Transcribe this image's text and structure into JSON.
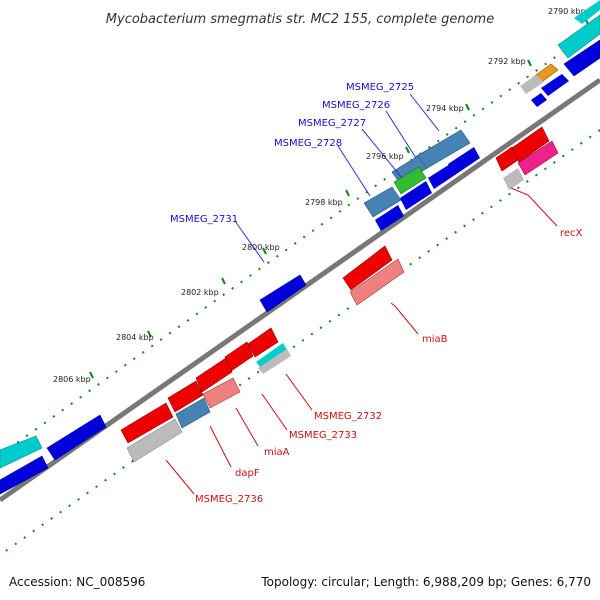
{
  "title": "Mycobacterium smegmatis str. MC2 155, complete genome",
  "footer": {
    "accession": "Accession: NC_008596",
    "summary": "Topology: circular; Length: 6,988,209 bp; Genes: 6,770"
  },
  "ticks": [
    "2790 kbp",
    "2792 kbp",
    "2794 kbp",
    "2796 kbp",
    "2798 kbp",
    "2800 kbp",
    "2802 kbp",
    "2804 kbp",
    "2806 kbp"
  ],
  "labels_top": [
    "MSMEG_2725",
    "MSMEG_2726",
    "MSMEG_2727",
    "MSMEG_2728",
    "MSMEG_2731"
  ],
  "labels_bottom": [
    "recX",
    "miaB",
    "MSMEG_2732",
    "MSMEG_2733",
    "miaA",
    "dapF",
    "MSMEG_2736"
  ],
  "colors": {
    "backbone": "#777777",
    "dots": "#118811",
    "cds_blue": "#0000dd",
    "gene_red": "#ee0000",
    "light_red": "#f08080",
    "steel_blue": "#4682b4",
    "cyan": "#00cccc",
    "grey": "#bbbbbb",
    "green": "#33bb33",
    "pink": "#ee2288",
    "orange": "#e89a20"
  }
}
